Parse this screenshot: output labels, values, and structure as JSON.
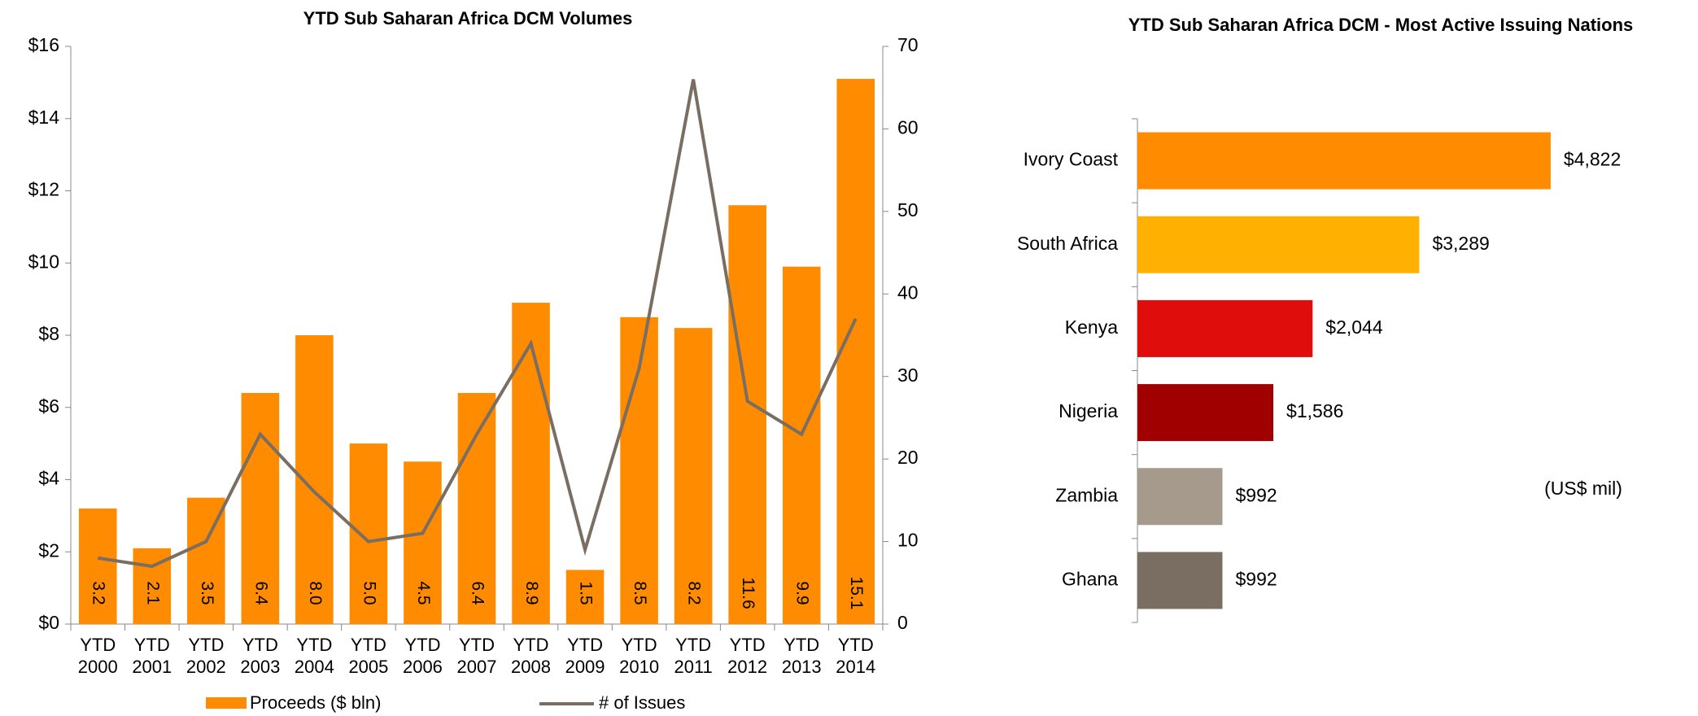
{
  "chart_data": [
    {
      "type": "bar",
      "title": "YTD Sub Saharan Africa DCM Volumes",
      "categories": [
        "YTD 2000",
        "YTD 2001",
        "YTD 2002",
        "YTD 2003",
        "YTD 2004",
        "YTD 2005",
        "YTD 2006",
        "YTD 2007",
        "YTD 2008",
        "YTD 2009",
        "YTD 2010",
        "YTD 2011",
        "YTD 2012",
        "YTD 2013",
        "YTD 2014"
      ],
      "series": [
        {
          "name": "Proceeds ($ bln)",
          "type": "bar",
          "color": "#ff8c00",
          "values": [
            3.2,
            2.1,
            3.5,
            6.4,
            8.0,
            5.0,
            4.5,
            6.4,
            8.9,
            1.5,
            8.5,
            8.2,
            11.6,
            9.9,
            15.1
          ],
          "value_labels": [
            "3.2",
            "2.1",
            "3.5",
            "6.4",
            "8.0",
            "5.0",
            "4.5",
            "6.4",
            "8.9",
            "1.5",
            "8.5",
            "8.2",
            "11.6",
            "9.9",
            "15.1"
          ]
        },
        {
          "name": "# of Issues",
          "type": "line",
          "axis": "y2",
          "color": "#7a6e62",
          "values": [
            8,
            7,
            10,
            23,
            16,
            10,
            11,
            23,
            34,
            9,
            31,
            66,
            27,
            23,
            37
          ]
        }
      ],
      "ylim": [
        0,
        16
      ],
      "yticks": [
        {
          "value": 0,
          "label": "$0"
        },
        {
          "value": 2,
          "label": "$2"
        },
        {
          "value": 4,
          "label": "$4"
        },
        {
          "value": 6,
          "label": "$6"
        },
        {
          "value": 8,
          "label": "$8"
        },
        {
          "value": 10,
          "label": "$10"
        },
        {
          "value": 12,
          "label": "$12"
        },
        {
          "value": 14,
          "label": "$14"
        },
        {
          "value": 16,
          "label": "$16"
        }
      ],
      "y2lim": [
        0,
        70
      ],
      "y2ticks": [
        0,
        10,
        20,
        30,
        40,
        50,
        60,
        70
      ],
      "legend": "bottom"
    },
    {
      "type": "barh",
      "title": "YTD Sub Saharan Africa DCM - Most Active Issuing Nations",
      "categories": [
        "Ivory Coast",
        "South Africa",
        "Kenya",
        "Nigeria",
        "Zambia",
        "Ghana"
      ],
      "values": [
        4822,
        3289,
        2044,
        1586,
        992,
        992
      ],
      "value_labels": [
        "$4,822",
        "$3,289",
        "$2,044",
        "$1,586",
        "$992",
        "$992"
      ],
      "colors": [
        "#ff8c00",
        "#ffb000",
        "#e00d0d",
        "#a00000",
        "#a59a8c",
        "#7a6e62"
      ],
      "xlim": [
        0,
        6000
      ],
      "annotation": "(US$ mil)"
    }
  ]
}
